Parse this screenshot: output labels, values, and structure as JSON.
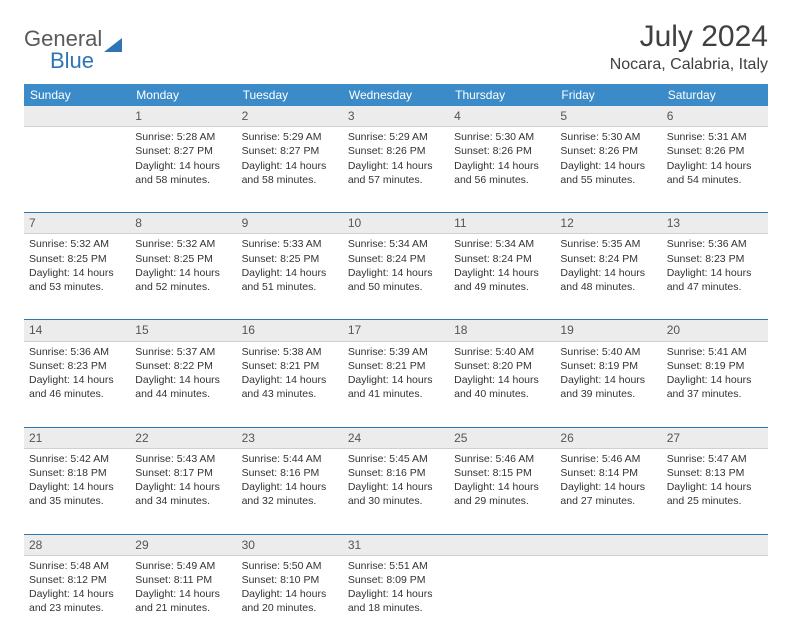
{
  "brand": {
    "name": "General",
    "sub": "Blue"
  },
  "title": "July 2024",
  "location": "Nocara, Calabria, Italy",
  "colors": {
    "header_bg": "#3b8bc8",
    "header_text": "#ffffff",
    "daynum_bg": "#ececec",
    "text": "#333333",
    "rule": "#2e75b6"
  },
  "weekdays": [
    "Sunday",
    "Monday",
    "Tuesday",
    "Wednesday",
    "Thursday",
    "Friday",
    "Saturday"
  ],
  "weeks": [
    {
      "nums": [
        "",
        "1",
        "2",
        "3",
        "4",
        "5",
        "6"
      ],
      "days": [
        null,
        {
          "sr": "5:28 AM",
          "ss": "8:27 PM",
          "dl": "14 hours and 58 minutes."
        },
        {
          "sr": "5:29 AM",
          "ss": "8:27 PM",
          "dl": "14 hours and 58 minutes."
        },
        {
          "sr": "5:29 AM",
          "ss": "8:26 PM",
          "dl": "14 hours and 57 minutes."
        },
        {
          "sr": "5:30 AM",
          "ss": "8:26 PM",
          "dl": "14 hours and 56 minutes."
        },
        {
          "sr": "5:30 AM",
          "ss": "8:26 PM",
          "dl": "14 hours and 55 minutes."
        },
        {
          "sr": "5:31 AM",
          "ss": "8:26 PM",
          "dl": "14 hours and 54 minutes."
        }
      ]
    },
    {
      "nums": [
        "7",
        "8",
        "9",
        "10",
        "11",
        "12",
        "13"
      ],
      "days": [
        {
          "sr": "5:32 AM",
          "ss": "8:25 PM",
          "dl": "14 hours and 53 minutes."
        },
        {
          "sr": "5:32 AM",
          "ss": "8:25 PM",
          "dl": "14 hours and 52 minutes."
        },
        {
          "sr": "5:33 AM",
          "ss": "8:25 PM",
          "dl": "14 hours and 51 minutes."
        },
        {
          "sr": "5:34 AM",
          "ss": "8:24 PM",
          "dl": "14 hours and 50 minutes."
        },
        {
          "sr": "5:34 AM",
          "ss": "8:24 PM",
          "dl": "14 hours and 49 minutes."
        },
        {
          "sr": "5:35 AM",
          "ss": "8:24 PM",
          "dl": "14 hours and 48 minutes."
        },
        {
          "sr": "5:36 AM",
          "ss": "8:23 PM",
          "dl": "14 hours and 47 minutes."
        }
      ]
    },
    {
      "nums": [
        "14",
        "15",
        "16",
        "17",
        "18",
        "19",
        "20"
      ],
      "days": [
        {
          "sr": "5:36 AM",
          "ss": "8:23 PM",
          "dl": "14 hours and 46 minutes."
        },
        {
          "sr": "5:37 AM",
          "ss": "8:22 PM",
          "dl": "14 hours and 44 minutes."
        },
        {
          "sr": "5:38 AM",
          "ss": "8:21 PM",
          "dl": "14 hours and 43 minutes."
        },
        {
          "sr": "5:39 AM",
          "ss": "8:21 PM",
          "dl": "14 hours and 41 minutes."
        },
        {
          "sr": "5:40 AM",
          "ss": "8:20 PM",
          "dl": "14 hours and 40 minutes."
        },
        {
          "sr": "5:40 AM",
          "ss": "8:19 PM",
          "dl": "14 hours and 39 minutes."
        },
        {
          "sr": "5:41 AM",
          "ss": "8:19 PM",
          "dl": "14 hours and 37 minutes."
        }
      ]
    },
    {
      "nums": [
        "21",
        "22",
        "23",
        "24",
        "25",
        "26",
        "27"
      ],
      "days": [
        {
          "sr": "5:42 AM",
          "ss": "8:18 PM",
          "dl": "14 hours and 35 minutes."
        },
        {
          "sr": "5:43 AM",
          "ss": "8:17 PM",
          "dl": "14 hours and 34 minutes."
        },
        {
          "sr": "5:44 AM",
          "ss": "8:16 PM",
          "dl": "14 hours and 32 minutes."
        },
        {
          "sr": "5:45 AM",
          "ss": "8:16 PM",
          "dl": "14 hours and 30 minutes."
        },
        {
          "sr": "5:46 AM",
          "ss": "8:15 PM",
          "dl": "14 hours and 29 minutes."
        },
        {
          "sr": "5:46 AM",
          "ss": "8:14 PM",
          "dl": "14 hours and 27 minutes."
        },
        {
          "sr": "5:47 AM",
          "ss": "8:13 PM",
          "dl": "14 hours and 25 minutes."
        }
      ]
    },
    {
      "nums": [
        "28",
        "29",
        "30",
        "31",
        "",
        "",
        ""
      ],
      "days": [
        {
          "sr": "5:48 AM",
          "ss": "8:12 PM",
          "dl": "14 hours and 23 minutes."
        },
        {
          "sr": "5:49 AM",
          "ss": "8:11 PM",
          "dl": "14 hours and 21 minutes."
        },
        {
          "sr": "5:50 AM",
          "ss": "8:10 PM",
          "dl": "14 hours and 20 minutes."
        },
        {
          "sr": "5:51 AM",
          "ss": "8:09 PM",
          "dl": "14 hours and 18 minutes."
        },
        null,
        null,
        null
      ]
    }
  ],
  "labels": {
    "sunrise": "Sunrise:",
    "sunset": "Sunset:",
    "daylight": "Daylight:"
  }
}
